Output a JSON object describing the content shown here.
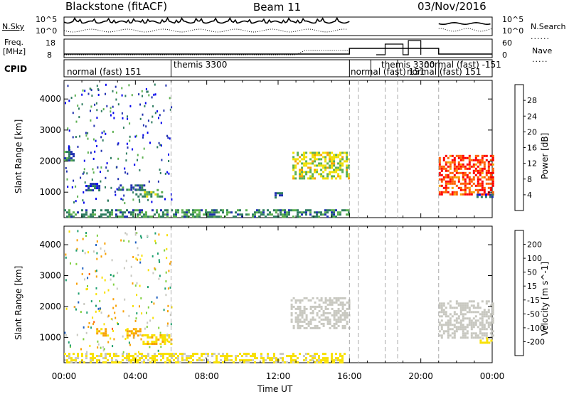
{
  "header": {
    "station": "Blackstone (fitACF)",
    "beam": "Beam 11",
    "date": "03/Nov/2016"
  },
  "strips": {
    "nsky_label": "N.Sky",
    "nsky_ticks": [
      "10^5",
      "10^0"
    ],
    "nsearch_label": "N.Search",
    "nsearch_ticks": [
      "10^5",
      "10^0"
    ],
    "freq_label": "Freq.",
    "freq_unit": "[MHz]",
    "freq_ticks": [
      "18",
      "8"
    ],
    "nave_label": "Nave",
    "nave_ticks": [
      "60",
      "0"
    ],
    "cpid_label": "CPID"
  },
  "cpid_segments": [
    {
      "start_hr": 0.0,
      "label": "normal (fast) 151"
    },
    {
      "start_hr": 6.0,
      "label": "themis 3300"
    },
    {
      "start_hr": 16.0,
      "label": "normal (fast) 151"
    },
    {
      "start_hr": 17.2,
      "label": "themis 3300"
    },
    {
      "start_hr": 18.7,
      "label": "normal (fast) 151"
    },
    {
      "start_hr": 21.0,
      "label": "normal (fast) -151"
    }
  ],
  "chart_data": [
    {
      "type": "heatmap",
      "quantity": "Power",
      "ylabel": "Slant Range [km]",
      "xlabel": "Time UT",
      "x_ticks": [
        "00:00",
        "04:00",
        "08:00",
        "12:00",
        "16:00",
        "20:00",
        "00:00"
      ],
      "xlim_hours": [
        0,
        24
      ],
      "y_ticks": [
        1000,
        2000,
        3000,
        4000
      ],
      "ylim_km": [
        180,
        4600
      ],
      "colorbar": {
        "label": "Power [dB]",
        "ticks": [
          "4",
          "8",
          "12",
          "16",
          "20",
          "24",
          "28"
        ],
        "range": [
          0,
          30
        ],
        "colors": [
          "#0000ee",
          "#2030b0",
          "#2f7d60",
          "#5cb050",
          "#f0e000",
          "#f8a000",
          "#ff6000",
          "#ff0000"
        ]
      },
      "regions": [
        {
          "t0": 0.0,
          "t1": 16.0,
          "r0": 180,
          "r1": 450,
          "value": 10
        },
        {
          "t0": 0.0,
          "t1": 0.5,
          "r0": 2050,
          "r1": 2400,
          "value": 8
        },
        {
          "t0": 1.2,
          "t1": 2.0,
          "r0": 1050,
          "r1": 1300,
          "value": 6
        },
        {
          "t0": 3.0,
          "t1": 4.5,
          "r0": 1050,
          "r1": 1250,
          "value": 8
        },
        {
          "t0": 4.0,
          "t1": 5.5,
          "r0": 850,
          "r1": 1100,
          "value": 12
        },
        {
          "t0": 12.8,
          "t1": 16.0,
          "r0": 1450,
          "r1": 2300,
          "value": 16
        },
        {
          "t0": 11.8,
          "t1": 12.2,
          "r0": 800,
          "r1": 1000,
          "value": 8
        },
        {
          "t0": 21.0,
          "t1": 24.0,
          "r0": 950,
          "r1": 2200,
          "value": 26
        },
        {
          "t0": 23.0,
          "t1": 24.0,
          "r0": 850,
          "r1": 950,
          "value": 6
        }
      ]
    },
    {
      "type": "heatmap",
      "quantity": "Velocity",
      "ylabel": "Slant Range [km]",
      "xlabel": "Time UT",
      "x_ticks": [
        "00:00",
        "04:00",
        "08:00",
        "12:00",
        "16:00",
        "20:00",
        "00:00"
      ],
      "xlim_hours": [
        0,
        24
      ],
      "y_ticks": [
        1000,
        2000,
        3000,
        4000
      ],
      "ylim_km": [
        180,
        4600
      ],
      "colorbar": {
        "label": "Velocity [m s^-1]",
        "ticks": [
          "200",
          "100",
          "50",
          "15",
          "-15",
          "-50",
          "-100",
          "-200"
        ],
        "range": [
          -250,
          250
        ],
        "colors": [
          "#0000cc",
          "#2060c0",
          "#20a070",
          "#80d040",
          "#c8c8c0",
          "#f8e000",
          "#f8a000",
          "#ff6000",
          "#ff0000"
        ]
      },
      "regions": [
        {
          "t0": 0.0,
          "t1": 16.0,
          "r0": 180,
          "r1": 500,
          "value": -40
        },
        {
          "t0": 1.8,
          "t1": 2.4,
          "r0": 1050,
          "r1": 1300,
          "value": -90
        },
        {
          "t0": 3.5,
          "t1": 4.4,
          "r0": 1000,
          "r1": 1300,
          "value": -100
        },
        {
          "t0": 4.4,
          "t1": 6.0,
          "r0": 800,
          "r1": 1100,
          "value": -70
        },
        {
          "t0": 12.7,
          "t1": 16.0,
          "r0": 1300,
          "r1": 2300,
          "value": 0
        },
        {
          "t0": 21.0,
          "t1": 24.0,
          "r0": 1000,
          "r1": 2200,
          "value": 0
        },
        {
          "t0": 23.3,
          "t1": 24.0,
          "r0": 850,
          "r1": 1000,
          "value": -40
        }
      ]
    }
  ]
}
